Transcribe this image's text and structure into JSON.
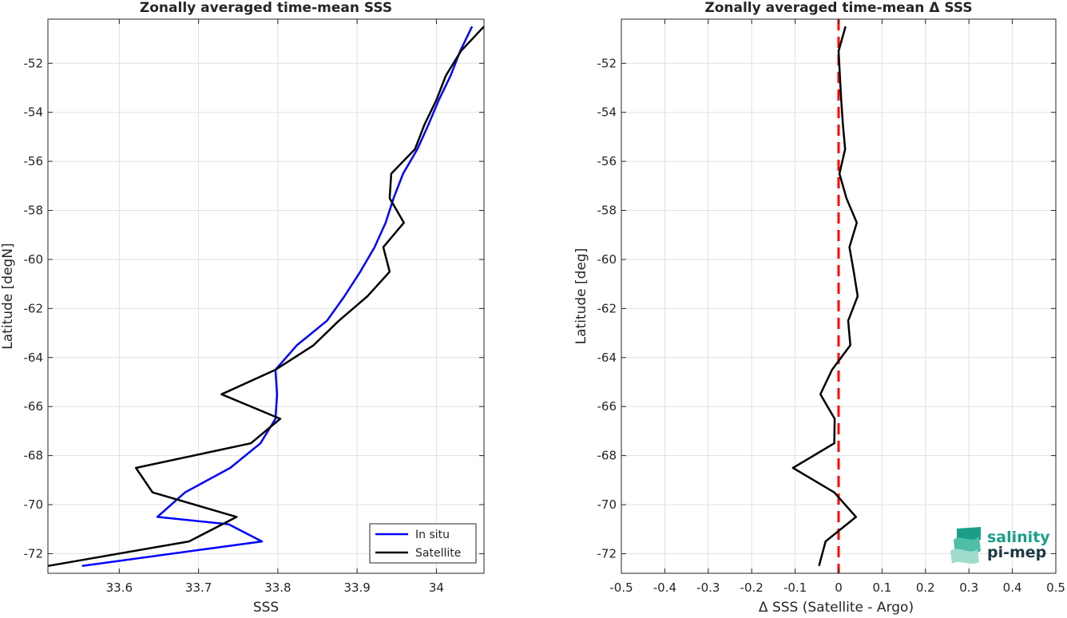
{
  "chart_data": [
    {
      "type": "line",
      "title": "Zonally averaged time-mean SSS",
      "xlabel": "SSS",
      "ylabel": "Latitude [degN]",
      "xlim": [
        33.51,
        34.06
      ],
      "ylim": [
        -72.8,
        -50.2
      ],
      "xticks": [
        33.6,
        33.7,
        33.8,
        33.9,
        34.0
      ],
      "xtick_labels": [
        "33.6",
        "33.7",
        "33.8",
        "33.9",
        "34"
      ],
      "yticks": [
        -72,
        -70,
        -68,
        -66,
        -64,
        -62,
        -60,
        -58,
        -56,
        -54,
        -52
      ],
      "ytick_labels": [
        "-72",
        "-70",
        "-68",
        "-66",
        "-64",
        "-62",
        "-60",
        "-58",
        "-56",
        "-54",
        "-52"
      ],
      "grid": true,
      "legend_position": "bottom-right",
      "series": [
        {
          "name": "In situ",
          "color": "#0000ff",
          "points": [
            [
              33.553,
              -72.5
            ],
            [
              33.78,
              -71.5
            ],
            [
              33.738,
              -70.8
            ],
            [
              33.648,
              -70.5
            ],
            [
              33.683,
              -69.5
            ],
            [
              33.74,
              -68.5
            ],
            [
              33.778,
              -67.5
            ],
            [
              33.797,
              -66.5
            ],
            [
              33.799,
              -65.5
            ],
            [
              33.797,
              -64.5
            ],
            [
              33.824,
              -63.5
            ],
            [
              33.862,
              -62.5
            ],
            [
              33.884,
              -61.5
            ],
            [
              33.904,
              -60.5
            ],
            [
              33.922,
              -59.5
            ],
            [
              33.936,
              -58.5
            ],
            [
              33.946,
              -57.5
            ],
            [
              33.958,
              -56.5
            ],
            [
              33.976,
              -55.5
            ],
            [
              33.99,
              -54.5
            ],
            [
              34.003,
              -53.5
            ],
            [
              34.018,
              -52.5
            ],
            [
              34.03,
              -51.5
            ],
            [
              34.045,
              -50.5
            ]
          ]
        },
        {
          "name": "Satellite",
          "color": "#000000",
          "points": [
            [
              33.51,
              -72.5
            ],
            [
              33.688,
              -71.5
            ],
            [
              33.748,
              -70.5
            ],
            [
              33.642,
              -69.5
            ],
            [
              33.621,
              -68.5
            ],
            [
              33.766,
              -67.5
            ],
            [
              33.803,
              -66.5
            ],
            [
              33.729,
              -65.5
            ],
            [
              33.797,
              -64.5
            ],
            [
              33.845,
              -63.5
            ],
            [
              33.877,
              -62.5
            ],
            [
              33.913,
              -61.5
            ],
            [
              33.941,
              -60.5
            ],
            [
              33.933,
              -59.5
            ],
            [
              33.959,
              -58.5
            ],
            [
              33.941,
              -57.5
            ],
            [
              33.943,
              -56.5
            ],
            [
              33.973,
              -55.5
            ],
            [
              33.985,
              -54.5
            ],
            [
              34.0,
              -53.5
            ],
            [
              34.012,
              -52.5
            ],
            [
              34.031,
              -51.5
            ],
            [
              34.06,
              -50.5
            ]
          ]
        }
      ]
    },
    {
      "type": "line",
      "title": "Zonally averaged time-mean Δ SSS",
      "xlabel": "Δ SSS (Satellite - Argo)",
      "ylabel": "Latitude [deg]",
      "xlim": [
        -0.5,
        0.5
      ],
      "ylim": [
        -72.8,
        -50.2
      ],
      "xticks": [
        -0.5,
        -0.4,
        -0.3,
        -0.2,
        -0.1,
        0,
        0.1,
        0.2,
        0.3,
        0.4,
        0.5
      ],
      "xtick_labels": [
        "-0.5",
        "-0.4",
        "-0.3",
        "-0.2",
        "-0.1",
        "0",
        "0.1",
        "0.2",
        "0.3",
        "0.4",
        "0.5"
      ],
      "yticks": [
        -72,
        -70,
        -68,
        -66,
        -64,
        -62,
        -60,
        -58,
        -56,
        -54,
        -52
      ],
      "ytick_labels": [
        "-72",
        "-70",
        "-68",
        "-66",
        "-64",
        "-62",
        "-60",
        "-58",
        "-56",
        "-54",
        "-52"
      ],
      "grid": true,
      "reference_line": {
        "x": 0,
        "color": "#ff0000",
        "style": "dashed"
      },
      "series": [
        {
          "color": "#000000",
          "points": [
            [
              -0.045,
              -72.5
            ],
            [
              -0.03,
              -71.5
            ],
            [
              0.04,
              -70.5
            ],
            [
              -0.01,
              -69.5
            ],
            [
              -0.105,
              -68.5
            ],
            [
              -0.01,
              -67.5
            ],
            [
              -0.009,
              -66.5
            ],
            [
              -0.042,
              -65.5
            ],
            [
              -0.015,
              -64.5
            ],
            [
              0.027,
              -63.5
            ],
            [
              0.022,
              -62.5
            ],
            [
              0.044,
              -61.5
            ],
            [
              0.035,
              -60.5
            ],
            [
              0.025,
              -59.5
            ],
            [
              0.042,
              -58.5
            ],
            [
              0.018,
              -57.5
            ],
            [
              0.002,
              -56.5
            ],
            [
              0.015,
              -55.5
            ],
            [
              0.01,
              -54.5
            ],
            [
              0.006,
              -53.5
            ],
            [
              0.003,
              -52.5
            ],
            [
              0.0,
              -51.5
            ],
            [
              0.016,
              -50.5
            ]
          ]
        }
      ]
    }
  ],
  "logo": {
    "line1": "salinity",
    "line2": "pi-mep",
    "color_primary": "#1a9e8a",
    "color_secondary": "#1b3b40"
  }
}
